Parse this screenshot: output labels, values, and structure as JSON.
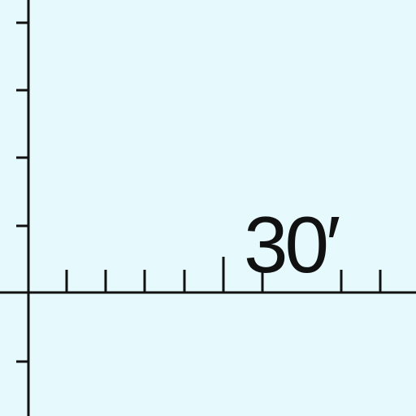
{
  "map": {
    "background_color": "#e6f9fc",
    "line_color": "#111111",
    "graticule_label": "30′"
  }
}
